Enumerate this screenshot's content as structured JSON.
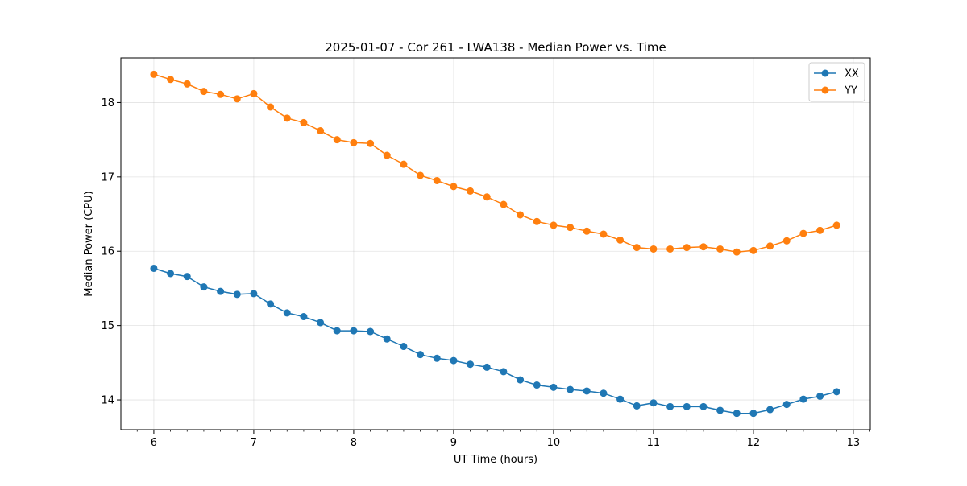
{
  "chart_data": {
    "type": "line",
    "title": "2025-01-07 - Cor 261 - LWA138 - Median Power vs. Time",
    "xlabel": "UT Time (hours)",
    "ylabel": "Median Power (CPU)",
    "xlim": [
      5.67,
      13.17
    ],
    "ylim": [
      13.6,
      18.6
    ],
    "xticks": [
      6,
      7,
      8,
      9,
      10,
      11,
      12,
      13
    ],
    "xtick_labels": [
      "6",
      "7",
      "8",
      "9",
      "10",
      "11",
      "12",
      "13"
    ],
    "yticks": [
      14,
      15,
      16,
      17,
      18
    ],
    "ytick_labels": [
      "14",
      "15",
      "16",
      "17",
      "18"
    ],
    "grid": true,
    "legend_position": "top-right",
    "x": [
      6.0,
      6.1667,
      6.3333,
      6.5,
      6.6667,
      6.8333,
      7.0,
      7.1667,
      7.3333,
      7.5,
      7.6667,
      7.8333,
      8.0,
      8.1667,
      8.3333,
      8.5,
      8.6667,
      8.8333,
      9.0,
      9.1667,
      9.3333,
      9.5,
      9.6667,
      9.8333,
      10.0,
      10.1667,
      10.3333,
      10.5,
      10.6667,
      10.8333,
      11.0,
      11.1667,
      11.3333,
      11.5,
      11.6667,
      11.8333,
      12.0,
      12.1667,
      12.3333,
      12.5,
      12.6667,
      12.8333
    ],
    "series": [
      {
        "name": "XX",
        "color": "#1f77b4",
        "values": [
          15.77,
          15.7,
          15.66,
          15.52,
          15.46,
          15.42,
          15.43,
          15.29,
          15.17,
          15.12,
          15.04,
          14.93,
          14.93,
          14.92,
          14.82,
          14.72,
          14.61,
          14.56,
          14.53,
          14.48,
          14.44,
          14.38,
          14.27,
          14.2,
          14.17,
          14.14,
          14.12,
          14.09,
          14.01,
          13.92,
          13.96,
          13.91,
          13.91,
          13.91,
          13.86,
          13.82,
          13.82,
          13.87,
          13.94,
          14.01,
          14.05,
          14.11
        ]
      },
      {
        "name": "YY",
        "color": "#ff7f0e",
        "values": [
          18.38,
          18.31,
          18.25,
          18.15,
          18.11,
          18.05,
          18.12,
          17.94,
          17.79,
          17.73,
          17.62,
          17.5,
          17.46,
          17.45,
          17.29,
          17.17,
          17.02,
          16.95,
          16.87,
          16.81,
          16.73,
          16.63,
          16.49,
          16.4,
          16.35,
          16.32,
          16.27,
          16.23,
          16.15,
          16.05,
          16.03,
          16.03,
          16.05,
          16.06,
          16.03,
          15.99,
          16.01,
          16.07,
          16.14,
          16.24,
          16.28,
          16.35
        ]
      }
    ]
  }
}
